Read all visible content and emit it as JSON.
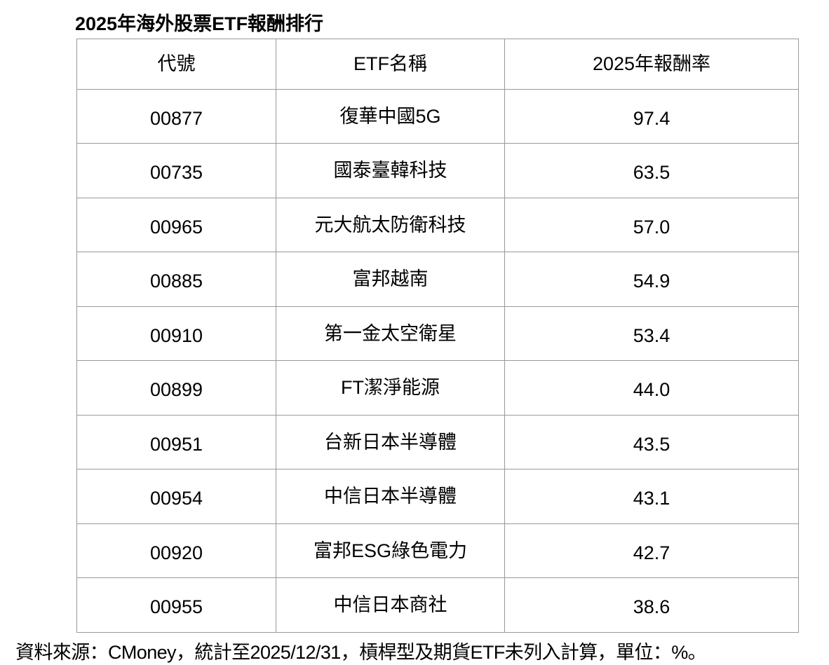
{
  "title": "2025年海外股票ETF報酬排行",
  "table": {
    "headers": [
      "代號",
      "ETF名稱",
      "2025年報酬率"
    ],
    "rows": [
      [
        "00877",
        "復華中國5G",
        "97.4"
      ],
      [
        "00735",
        "國泰臺韓科技",
        "63.5"
      ],
      [
        "00965",
        "元大航太防衛科技",
        "57.0"
      ],
      [
        "00885",
        "富邦越南",
        "54.9"
      ],
      [
        "00910",
        "第一金太空衛星",
        "53.4"
      ],
      [
        "00899",
        "FT潔淨能源",
        "44.0"
      ],
      [
        "00951",
        "台新日本半導體",
        "43.5"
      ],
      [
        "00954",
        "中信日本半導體",
        "43.1"
      ],
      [
        "00920",
        "富邦ESG綠色電力",
        "42.7"
      ],
      [
        "00955",
        "中信日本商社",
        "38.6"
      ]
    ]
  },
  "footnote": "資料來源：CMoney，統計至2025/12/31，槓桿型及期貨ETF未列入計算，單位：%。"
}
